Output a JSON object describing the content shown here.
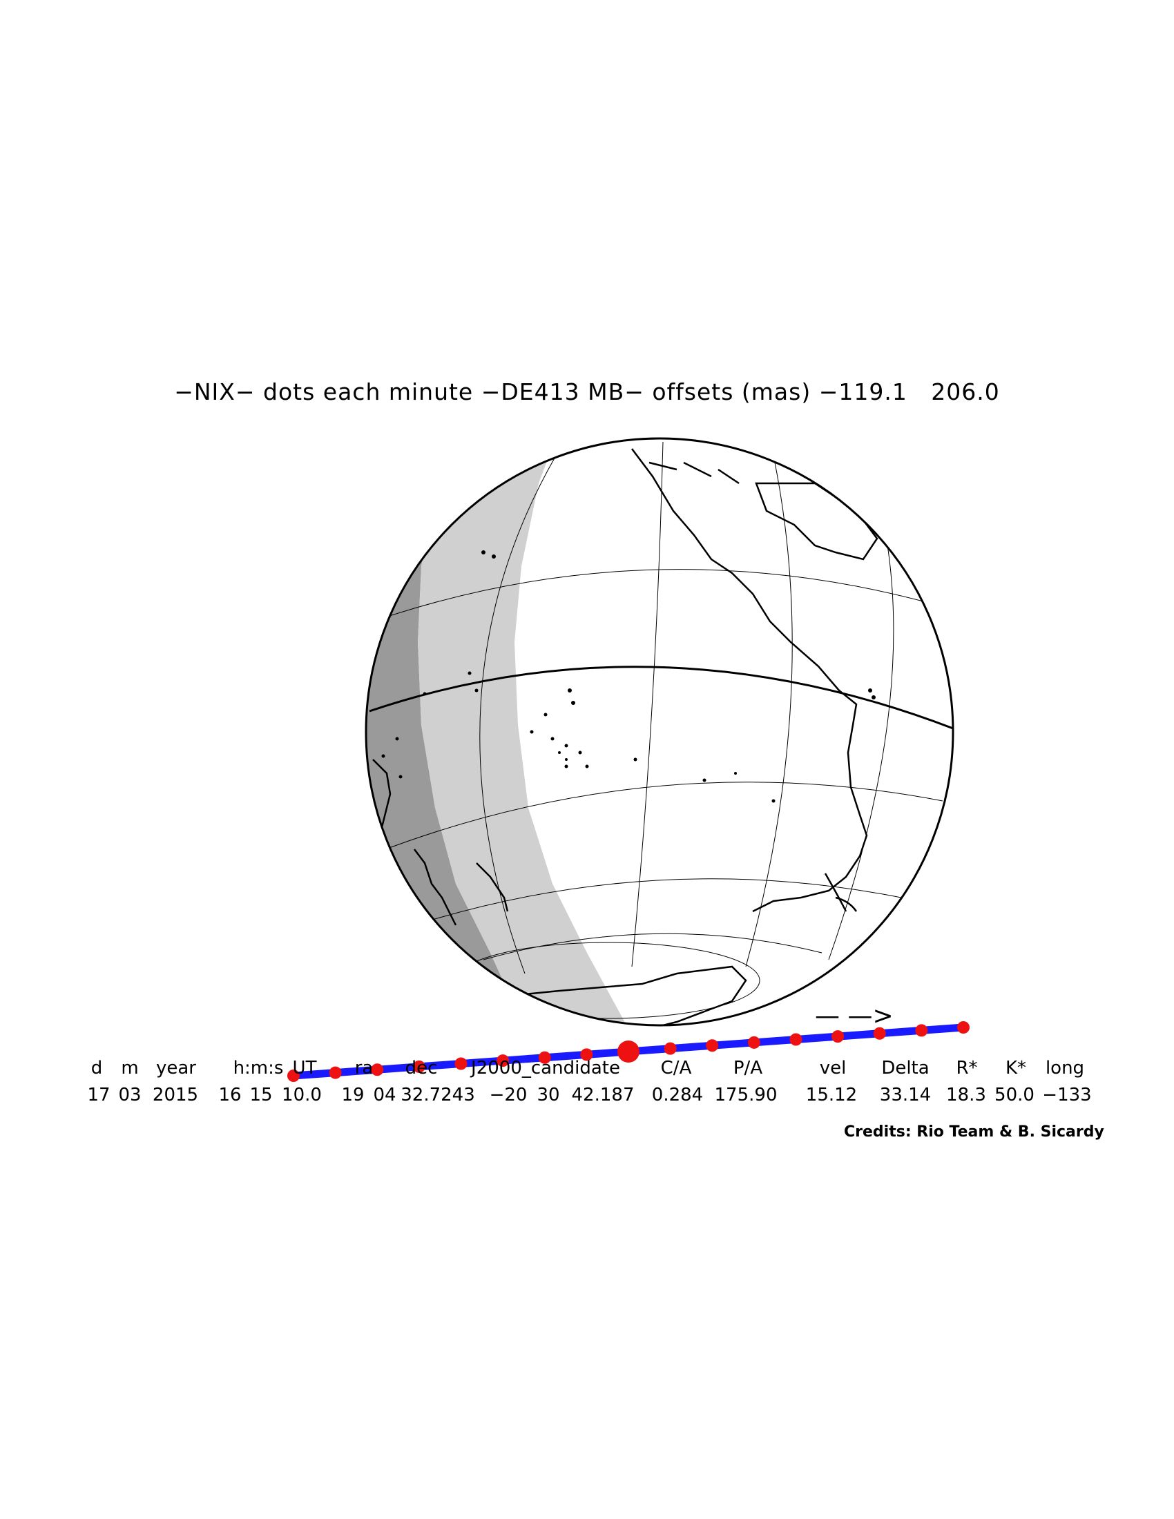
{
  "title": "−NIX− dots each minute −DE413 MB− offsets (mas) −119.1   206.0",
  "direction_arrow": "— —>",
  "header_labels": [
    "d",
    "m",
    "year",
    "h:m:s",
    "UT",
    "ra",
    "dec",
    "J2000_candidate",
    "C/A",
    "P/A",
    "vel",
    "Delta",
    "R*",
    "K*",
    "long"
  ],
  "values": [
    "17",
    "03",
    "2015",
    "16",
    "15",
    "10.0",
    "19",
    "04",
    "32.7243",
    "−20",
    "30",
    "42.187",
    "0.284",
    "175.90",
    "15.12",
    "33.14",
    "18.3",
    "50.0",
    "−133"
  ],
  "credits": "Credits: Rio Team & B. Sicardy",
  "colors": {
    "night": "#9a9a9a",
    "twilight": "#d0d0d0",
    "day": "#ffffff",
    "path": "#1a1aff",
    "dots": "#ee1111"
  },
  "track": {
    "dot_count": 17,
    "closest_approach_index": 8
  }
}
